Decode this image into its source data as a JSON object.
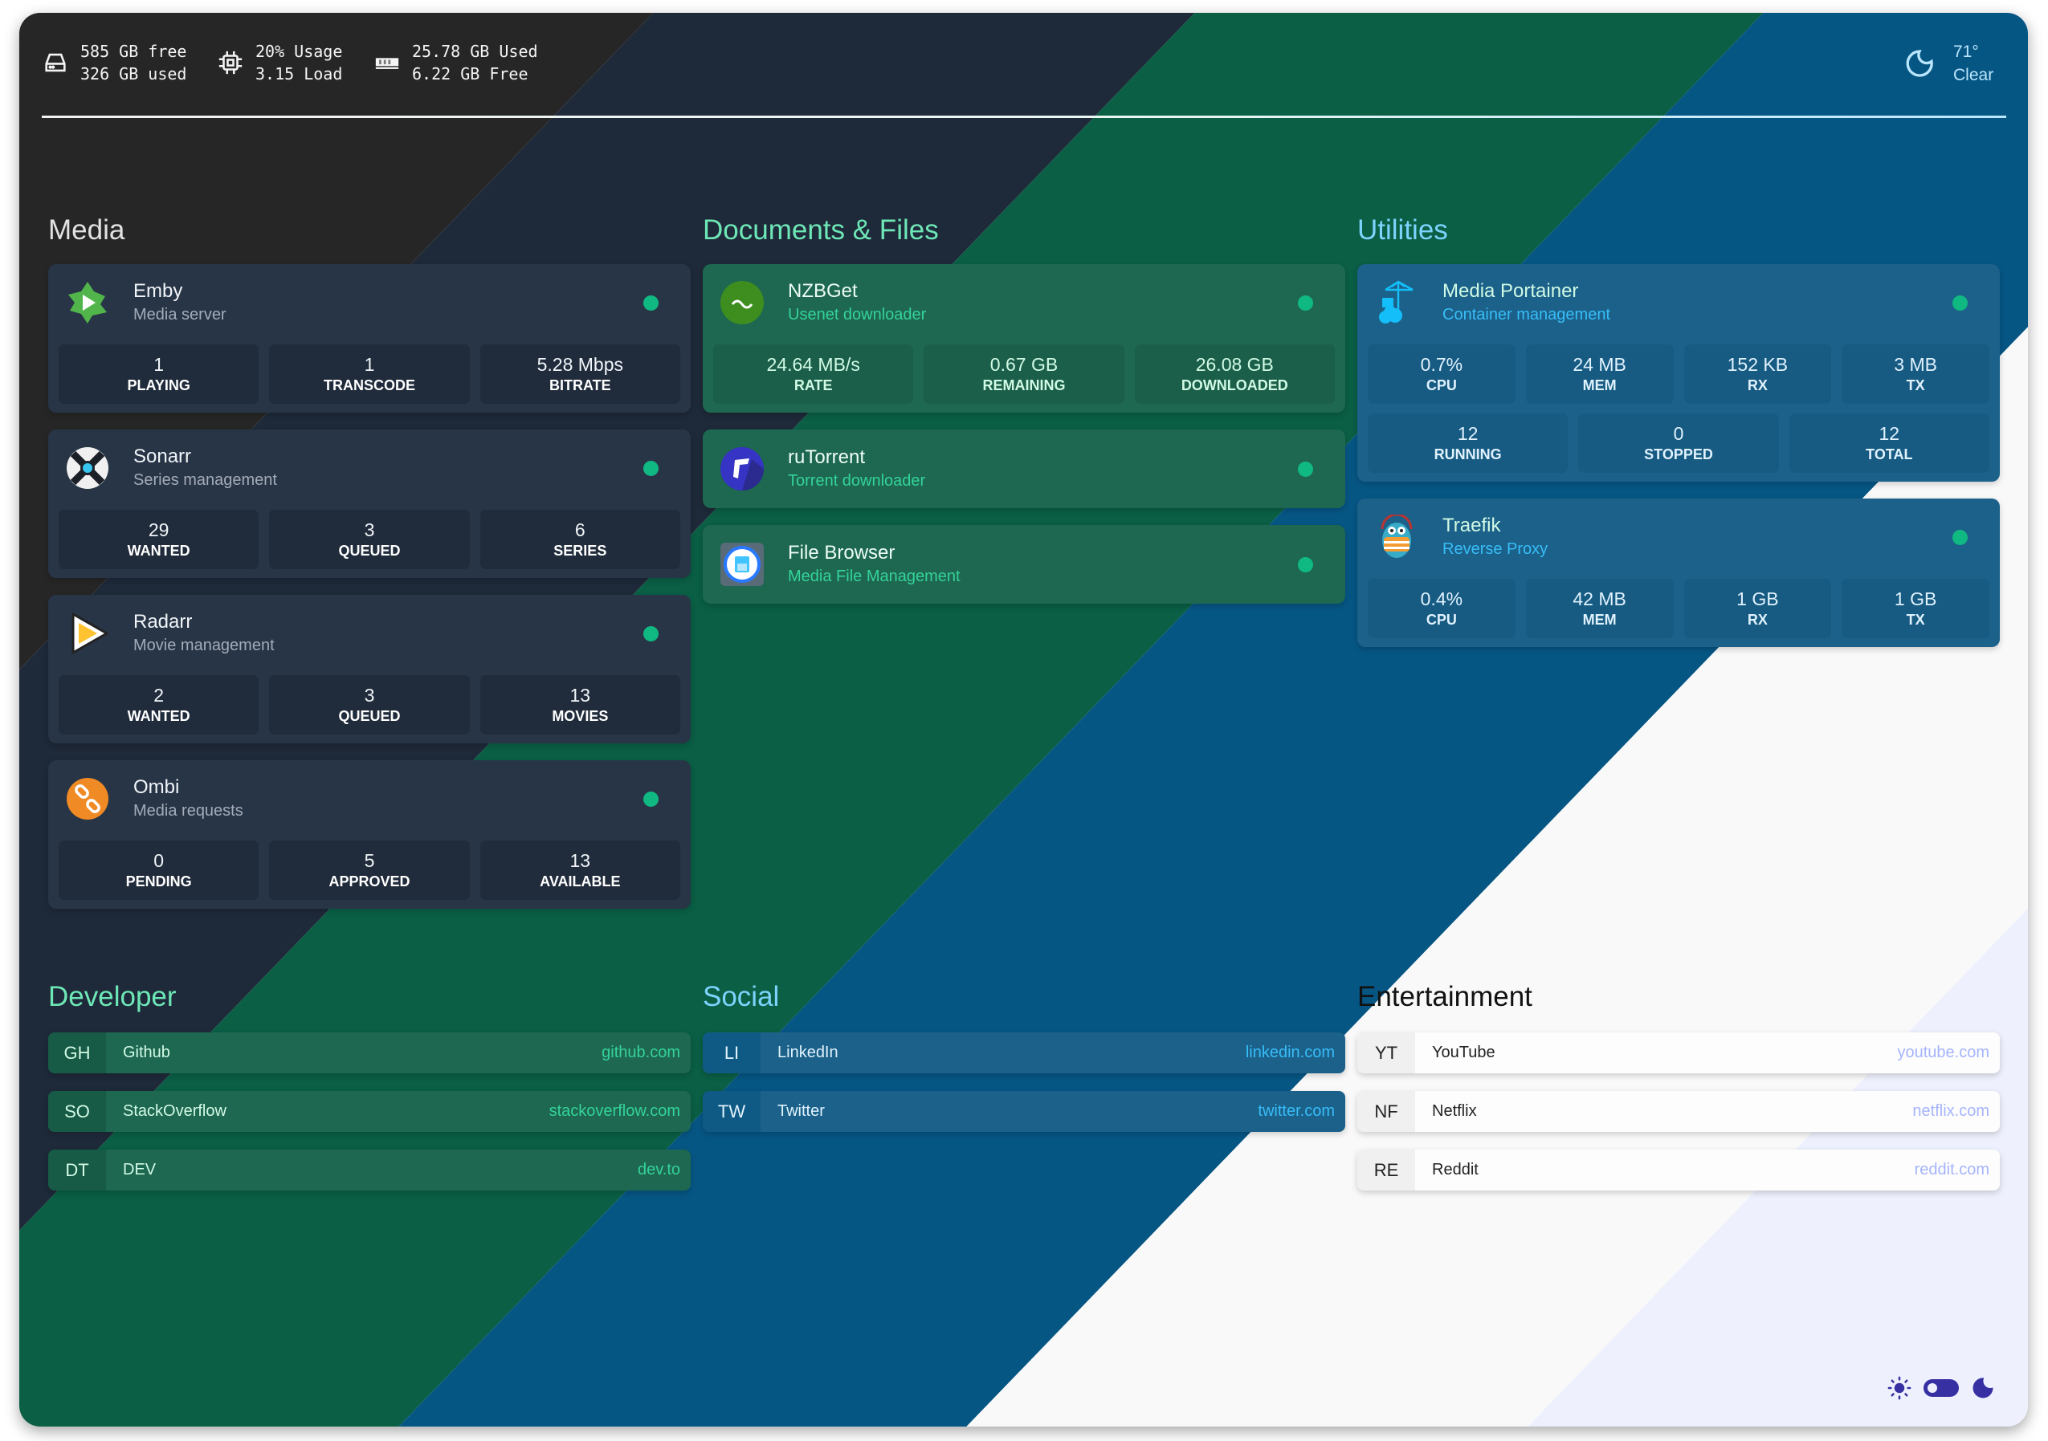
{
  "topbar": {
    "disk": {
      "free": "585 GB free",
      "used": "326 GB used",
      "icon": "hard-drive-icon"
    },
    "cpu": {
      "usage": "20% Usage",
      "load": "3.15 Load",
      "icon": "cpu-chip-icon"
    },
    "ram": {
      "used": "25.78 GB Used",
      "free": "6.22 GB Free",
      "icon": "memory-icon"
    },
    "weather": {
      "temp": "71°",
      "condition": "Clear",
      "icon": "moon-outline-icon"
    }
  },
  "services": [
    {
      "heading": "Media",
      "items": [
        {
          "name": "Emby",
          "desc": "Media server",
          "icon": "emby",
          "status": "online",
          "stat_rows": [
            [
              {
                "value": "1",
                "label": "PLAYING"
              },
              {
                "value": "1",
                "label": "TRANSCODE"
              },
              {
                "value": "5.28 Mbps",
                "label": "BITRATE"
              }
            ]
          ]
        },
        {
          "name": "Sonarr",
          "desc": "Series management",
          "icon": "sonarr",
          "status": "online",
          "stat_rows": [
            [
              {
                "value": "29",
                "label": "WANTED"
              },
              {
                "value": "3",
                "label": "QUEUED"
              },
              {
                "value": "6",
                "label": "SERIES"
              }
            ]
          ]
        },
        {
          "name": "Radarr",
          "desc": "Movie management",
          "icon": "radarr",
          "status": "online",
          "stat_rows": [
            [
              {
                "value": "2",
                "label": "WANTED"
              },
              {
                "value": "3",
                "label": "QUEUED"
              },
              {
                "value": "13",
                "label": "MOVIES"
              }
            ]
          ]
        },
        {
          "name": "Ombi",
          "desc": "Media requests",
          "icon": "ombi",
          "status": "online",
          "stat_rows": [
            [
              {
                "value": "0",
                "label": "PENDING"
              },
              {
                "value": "5",
                "label": "APPROVED"
              },
              {
                "value": "13",
                "label": "AVAILABLE"
              }
            ]
          ]
        }
      ]
    },
    {
      "heading": "Documents & Files",
      "items": [
        {
          "name": "NZBGet",
          "desc": "Usenet downloader",
          "icon": "nzbget",
          "logo_text": "nzbget",
          "status": "online",
          "stat_rows": [
            [
              {
                "value": "24.64 MB/s",
                "label": "RATE"
              },
              {
                "value": "0.67 GB",
                "label": "REMAINING"
              },
              {
                "value": "26.08 GB",
                "label": "DOWNLOADED"
              }
            ]
          ]
        },
        {
          "name": "ruTorrent",
          "desc": "Torrent downloader",
          "icon": "rutorrent",
          "status": "online",
          "stat_rows": []
        },
        {
          "name": "File Browser",
          "desc": "Media File Management",
          "icon": "filebrowser",
          "status": "online",
          "stat_rows": []
        }
      ]
    },
    {
      "heading": "Utilities",
      "items": [
        {
          "name": "Media Portainer",
          "desc": "Container management",
          "icon": "portainer",
          "status": "online",
          "stat_rows": [
            [
              {
                "value": "0.7%",
                "label": "CPU"
              },
              {
                "value": "24 MB",
                "label": "MEM"
              },
              {
                "value": "152 KB",
                "label": "RX"
              },
              {
                "value": "3 MB",
                "label": "TX"
              }
            ],
            [
              {
                "value": "12",
                "label": "RUNNING"
              },
              {
                "value": "0",
                "label": "STOPPED"
              },
              {
                "value": "12",
                "label": "TOTAL"
              }
            ]
          ]
        },
        {
          "name": "Traefik",
          "desc": "Reverse Proxy",
          "icon": "traefik",
          "status": "online",
          "stat_rows": [
            [
              {
                "value": "0.4%",
                "label": "CPU"
              },
              {
                "value": "42 MB",
                "label": "MEM"
              },
              {
                "value": "1 GB",
                "label": "RX"
              },
              {
                "value": "1 GB",
                "label": "TX"
              }
            ]
          ]
        }
      ]
    }
  ],
  "bookmarks": [
    {
      "heading": "Developer",
      "items": [
        {
          "abbr": "GH",
          "name": "Github",
          "url": "github.com"
        },
        {
          "abbr": "SO",
          "name": "StackOverflow",
          "url": "stackoverflow.com"
        },
        {
          "abbr": "DT",
          "name": "DEV",
          "url": "dev.to"
        }
      ]
    },
    {
      "heading": "Social",
      "items": [
        {
          "abbr": "LI",
          "name": "LinkedIn",
          "url": "linkedin.com"
        },
        {
          "abbr": "TW",
          "name": "Twitter",
          "url": "twitter.com"
        }
      ]
    },
    {
      "heading": "Entertainment",
      "items": [
        {
          "abbr": "YT",
          "name": "YouTube",
          "url": "youtube.com"
        },
        {
          "abbr": "NF",
          "name": "Netflix",
          "url": "netflix.com"
        },
        {
          "abbr": "RE",
          "name": "Reddit",
          "url": "reddit.com"
        }
      ]
    }
  ],
  "theme_toggle": {
    "light_icon": "sun-icon",
    "dark_icon": "moon-icon",
    "state": "dark",
    "accent": "#3730a3"
  },
  "colors": {
    "status_online": "#10b981"
  }
}
